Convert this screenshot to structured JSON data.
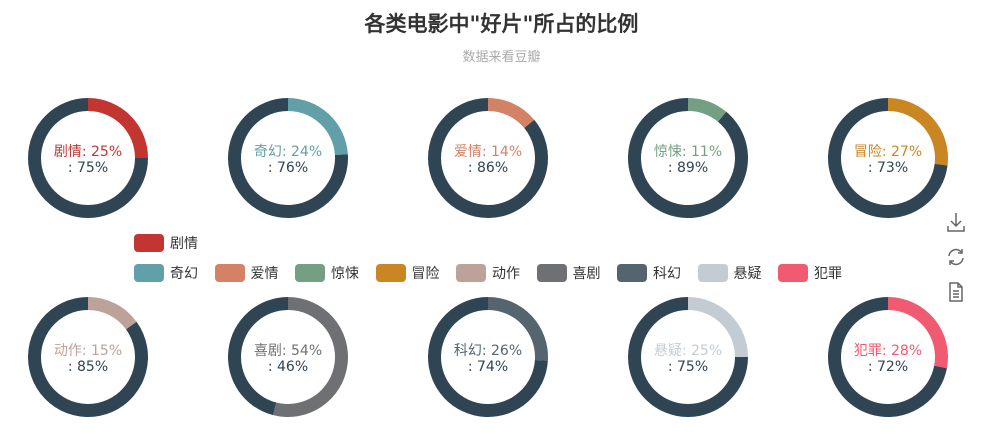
{
  "chart_data": {
    "type": "pie",
    "title": "各类电影中\"好片\"所占的比例",
    "subtitle": "数据来看豆瓣",
    "legend_placement": "center",
    "remainder_color": "#2f4554",
    "series": [
      {
        "name": "剧情",
        "value": 25,
        "color": "#c23531"
      },
      {
        "name": "奇幻",
        "value": 24,
        "color": "#61a0a8"
      },
      {
        "name": "爱情",
        "value": 14,
        "color": "#d48265"
      },
      {
        "name": "惊悚",
        "value": 11,
        "color": "#749f83"
      },
      {
        "name": "冒险",
        "value": 27,
        "color": "#ca8622"
      },
      {
        "name": "动作",
        "value": 15,
        "color": "#bda29a"
      },
      {
        "name": "喜剧",
        "value": 54,
        "color": "#6e7074"
      },
      {
        "name": "科幻",
        "value": 26,
        "color": "#546570"
      },
      {
        "name": "悬疑",
        "value": 25,
        "color": "#c4ccd3"
      },
      {
        "name": "犯罪",
        "value": 28,
        "color": "#f05b72"
      }
    ]
  },
  "toolbox": {
    "icons": [
      "download-icon",
      "refresh-icon",
      "data-view-icon"
    ]
  }
}
